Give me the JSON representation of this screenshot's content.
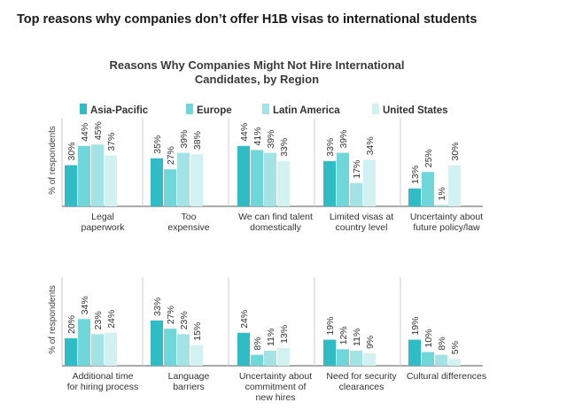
{
  "header": {
    "text": "Top reasons why companies don’t offer H1B visas to international students"
  },
  "chart_data": {
    "type": "bar",
    "title_line1": "Reasons Why Companies Might Not Hire International",
    "title_line2": "Candidates, by Region",
    "ylabel": "% of respondents",
    "ylim": [
      0,
      60
    ],
    "legend_position": "top",
    "series": [
      {
        "name": "Asia-Pacific",
        "color": "#2fbcc4"
      },
      {
        "name": "Europe",
        "color": "#6fd6da"
      },
      {
        "name": "Latin America",
        "color": "#a3e3e6"
      },
      {
        "name": "United States",
        "color": "#d2f1f2"
      }
    ],
    "panels": [
      {
        "groups": [
          {
            "label_lines": [
              "Legal",
              "paperwork"
            ],
            "values": [
              30,
              44,
              45,
              37
            ]
          },
          {
            "label_lines": [
              "Too",
              "expensive"
            ],
            "values": [
              35,
              27,
              39,
              38
            ]
          },
          {
            "label_lines": [
              "We can find talent",
              "domestically"
            ],
            "values": [
              44,
              41,
              39,
              33
            ]
          },
          {
            "label_lines": [
              "Limited visas at",
              "country level"
            ],
            "values": [
              33,
              39,
              17,
              34
            ]
          },
          {
            "label_lines": [
              "Uncertainty about",
              "future policy/law"
            ],
            "values": [
              13,
              25,
              1,
              30
            ]
          }
        ]
      },
      {
        "groups": [
          {
            "label_lines": [
              "Additional time",
              "for hiring process"
            ],
            "values": [
              20,
              34,
              23,
              24
            ]
          },
          {
            "label_lines": [
              "Language",
              "barriers"
            ],
            "values": [
              33,
              27,
              23,
              15
            ]
          },
          {
            "label_lines": [
              "Uncertainty about",
              "commitment of",
              "new hires"
            ],
            "values": [
              24,
              8,
              11,
              13
            ]
          },
          {
            "label_lines": [
              "Need for security",
              "clearances"
            ],
            "values": [
              19,
              12,
              11,
              9
            ]
          },
          {
            "label_lines": [
              "Cultural differences"
            ],
            "values": [
              19,
              10,
              8,
              5
            ]
          }
        ]
      }
    ]
  }
}
